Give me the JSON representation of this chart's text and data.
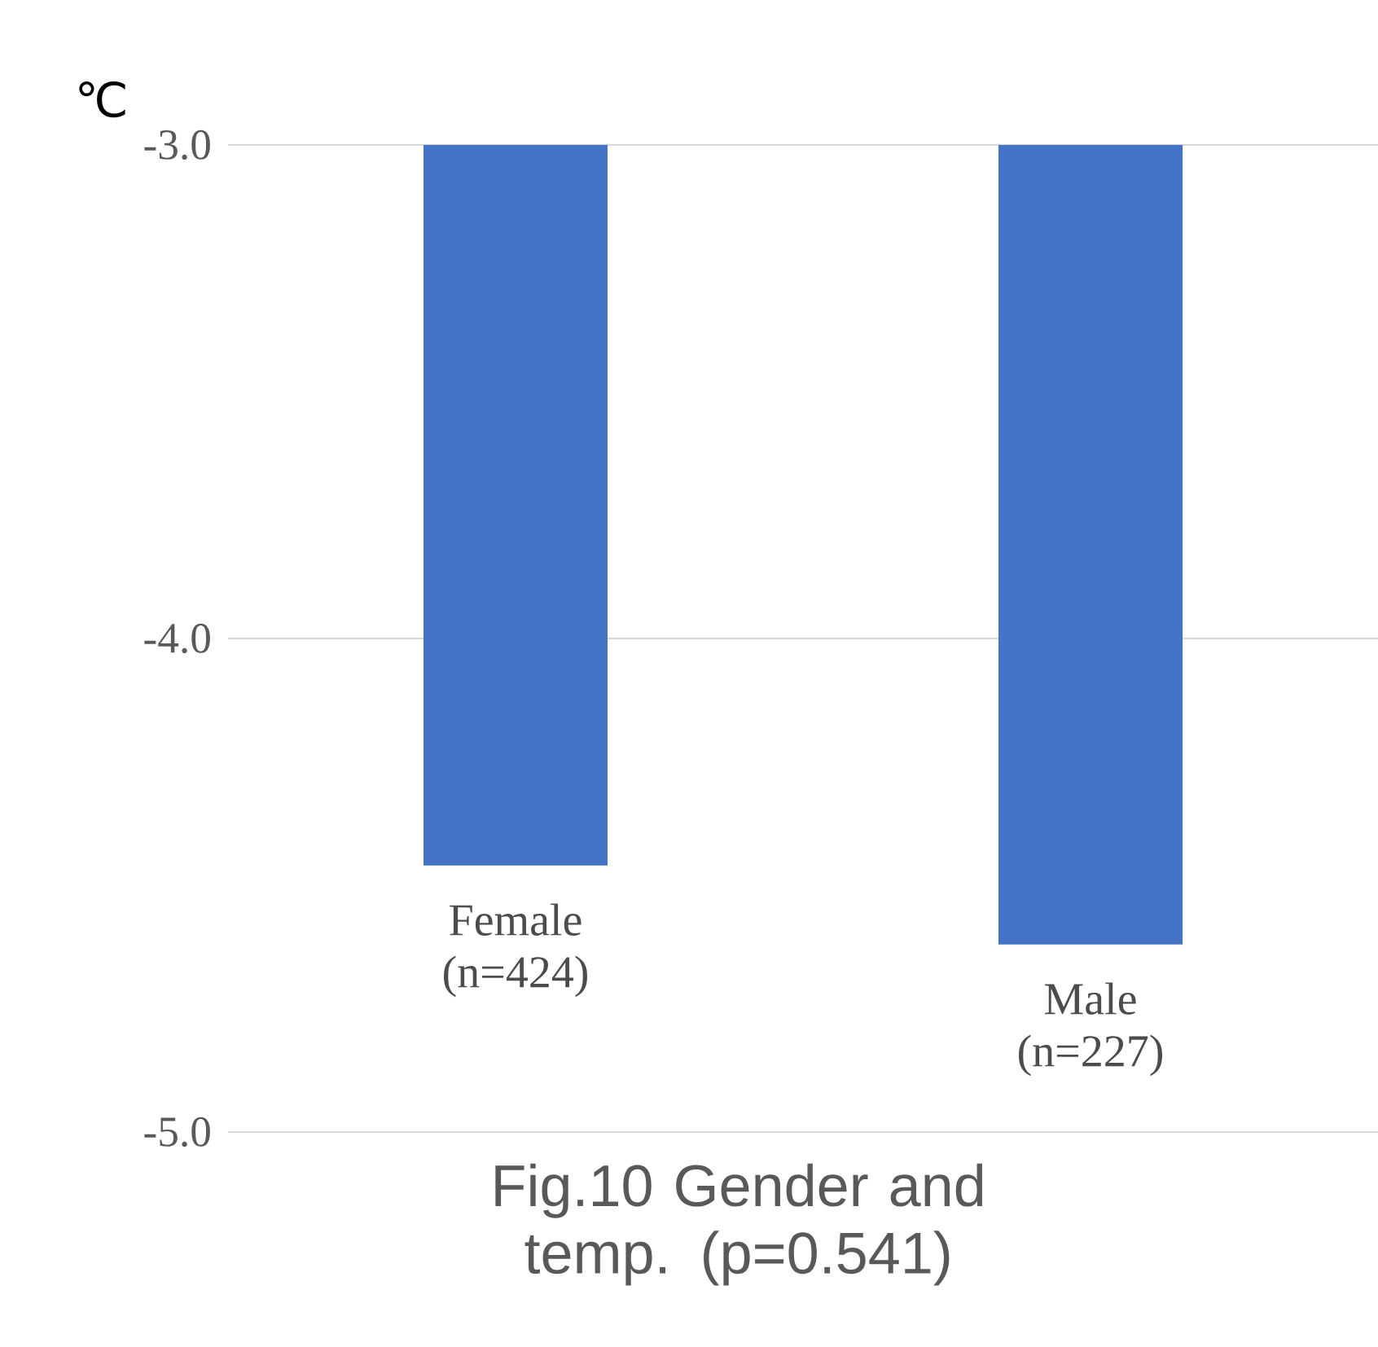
{
  "chart_data": {
    "type": "bar",
    "title": "Fig.10 Gender and temp. (p=0.541)",
    "ylabel": "℃",
    "categories": [
      "Female (n=424)",
      "Male (n=227)"
    ],
    "values": [
      -4.46,
      -4.62
    ],
    "color": "#4472c4",
    "ylim": [
      -5,
      -3
    ],
    "yticks": [
      {
        "value": -5,
        "label": "-5.0"
      },
      {
        "value": -4,
        "label": "-4.0"
      },
      {
        "value": -3,
        "label": "-3.0"
      }
    ],
    "grid": "y"
  }
}
